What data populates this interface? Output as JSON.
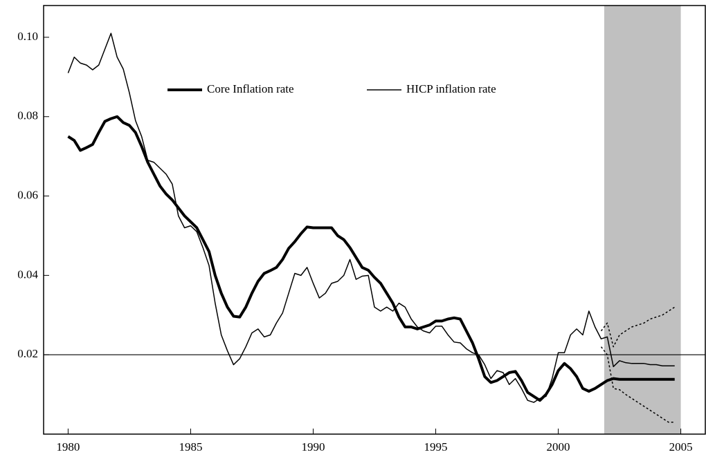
{
  "chart_data": {
    "type": "line",
    "x": [
      1980,
      1980.25,
      1980.5,
      1980.75,
      1981,
      1981.25,
      1981.5,
      1981.75,
      1982,
      1982.25,
      1982.5,
      1982.75,
      1983,
      1983.25,
      1983.5,
      1983.75,
      1984,
      1984.25,
      1984.5,
      1984.75,
      1985,
      1985.25,
      1985.5,
      1985.75,
      1986,
      1986.25,
      1986.5,
      1986.75,
      1987,
      1987.25,
      1987.5,
      1987.75,
      1988,
      1988.25,
      1988.5,
      1988.75,
      1989,
      1989.25,
      1989.5,
      1989.75,
      1990,
      1990.25,
      1990.5,
      1990.75,
      1991,
      1991.25,
      1991.5,
      1991.75,
      1992,
      1992.25,
      1992.5,
      1992.75,
      1993,
      1993.25,
      1993.5,
      1993.75,
      1994,
      1994.25,
      1994.5,
      1994.75,
      1995,
      1995.25,
      1995.5,
      1995.75,
      1996,
      1996.25,
      1996.5,
      1996.75,
      1997,
      1997.25,
      1997.5,
      1997.75,
      1998,
      1998.25,
      1998.5,
      1998.75,
      1999,
      1999.25,
      1999.5,
      1999.75,
      2000,
      2000.25,
      2000.5,
      2000.75,
      2001,
      2001.25,
      2001.5,
      2001.75,
      2002,
      2002.25,
      2002.5,
      2002.75,
      2003,
      2003.25,
      2003.5,
      2003.75,
      2004,
      2004.25,
      2004.5,
      2004.75
    ],
    "series": [
      {
        "name": "Core Inflation rate",
        "color": "#000000",
        "style": "thick",
        "values": [
          0.075,
          0.074,
          0.0715,
          0.0722,
          0.073,
          0.076,
          0.0788,
          0.0795,
          0.08,
          0.0785,
          0.0778,
          0.076,
          0.0725,
          0.0685,
          0.0655,
          0.0625,
          0.0605,
          0.059,
          0.057,
          0.055,
          0.0535,
          0.052,
          0.049,
          0.046,
          0.04,
          0.0355,
          0.032,
          0.0297,
          0.0295,
          0.032,
          0.0355,
          0.0385,
          0.0405,
          0.0412,
          0.042,
          0.044,
          0.0468,
          0.0485,
          0.0505,
          0.0522,
          0.052,
          0.052,
          0.052,
          0.052,
          0.05,
          0.049,
          0.047,
          0.0445,
          0.042,
          0.0413,
          0.0395,
          0.038,
          0.0355,
          0.033,
          0.0295,
          0.027,
          0.027,
          0.0265,
          0.027,
          0.0275,
          0.0285,
          0.0285,
          0.029,
          0.0293,
          0.029,
          0.026,
          0.023,
          0.019,
          0.0145,
          0.013,
          0.0135,
          0.0145,
          0.0155,
          0.0158,
          0.0135,
          0.0105,
          0.0095,
          0.0085,
          0.01,
          0.0125,
          0.016,
          0.0178,
          0.0165,
          0.0145,
          0.0115,
          0.0108,
          0.0115,
          0.0125,
          0.0135,
          0.014,
          0.0138,
          0.0138,
          0.0138,
          0.0138,
          0.0138,
          0.0138,
          0.0138,
          0.0138,
          0.0138,
          0.0138
        ]
      },
      {
        "name": "HICP inflation rate",
        "color": "#000000",
        "style": "thin",
        "values": [
          0.091,
          0.095,
          0.0935,
          0.093,
          0.0918,
          0.093,
          0.097,
          0.101,
          0.095,
          0.092,
          0.086,
          0.079,
          0.075,
          0.069,
          0.0685,
          0.067,
          0.0655,
          0.063,
          0.055,
          0.052,
          0.0525,
          0.051,
          0.047,
          0.0425,
          0.033,
          0.025,
          0.021,
          0.0175,
          0.019,
          0.022,
          0.0255,
          0.0265,
          0.0245,
          0.025,
          0.028,
          0.0305,
          0.0355,
          0.0405,
          0.04,
          0.042,
          0.038,
          0.0343,
          0.0355,
          0.038,
          0.0385,
          0.04,
          0.044,
          0.039,
          0.0398,
          0.04,
          0.032,
          0.031,
          0.032,
          0.031,
          0.033,
          0.032,
          0.029,
          0.027,
          0.026,
          0.0255,
          0.0272,
          0.0272,
          0.025,
          0.0232,
          0.023,
          0.0215,
          0.0205,
          0.02,
          0.0175,
          0.014,
          0.016,
          0.0155,
          0.0125,
          0.014,
          0.0115,
          0.0085,
          0.008,
          0.009,
          0.0095,
          0.014,
          0.0205,
          0.0205,
          0.025,
          0.0265,
          0.025,
          0.031,
          0.027,
          0.024,
          0.0245,
          0.017,
          0.0185,
          0.018,
          0.0178,
          0.0178,
          0.0178,
          0.0175,
          0.0175,
          0.0172,
          0.0172,
          0.0172
        ]
      },
      {
        "color": "#000000",
        "style": "dotted",
        "x": [
          2001.75,
          2002,
          2002.25,
          2002.5,
          2002.75,
          2003,
          2003.25,
          2003.5,
          2003.75,
          2004,
          2004.25,
          2004.5,
          2004.75
        ],
        "values": [
          0.026,
          0.028,
          0.022,
          0.025,
          0.026,
          0.027,
          0.0275,
          0.028,
          0.029,
          0.0295,
          0.03,
          0.031,
          0.032
        ]
      },
      {
        "color": "#000000",
        "style": "dotted",
        "x": [
          2001.75,
          2002,
          2002.25,
          2002.5,
          2002.75,
          2003,
          2003.25,
          2003.5,
          2003.75,
          2004,
          2004.25,
          2004.5,
          2004.75
        ],
        "values": [
          0.022,
          0.02,
          0.0115,
          0.0112,
          0.01,
          0.009,
          0.008,
          0.007,
          0.006,
          0.005,
          0.004,
          0.003,
          0.003
        ]
      }
    ],
    "xlim": [
      1979,
      2006
    ],
    "ylim": [
      0,
      0.108
    ],
    "xticks": [
      1980,
      1985,
      1990,
      1995,
      2000,
      2005
    ],
    "yticks": [
      0.02,
      0.04,
      0.06,
      0.08,
      {
        "value": 0.1,
        "label": "0.10"
      }
    ],
    "hline": 0.02,
    "hline_color": "#000000",
    "shade": [
      2001.875,
      2005
    ],
    "shade_color": "#c0c0c0",
    "grid": false,
    "legend": "top"
  }
}
